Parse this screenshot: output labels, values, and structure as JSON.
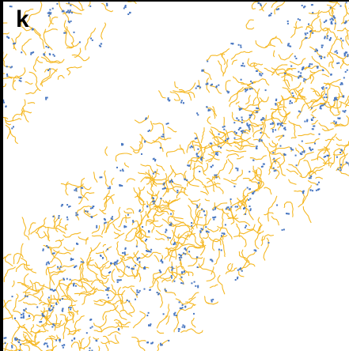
{
  "panel": {
    "label": "k"
  }
}
